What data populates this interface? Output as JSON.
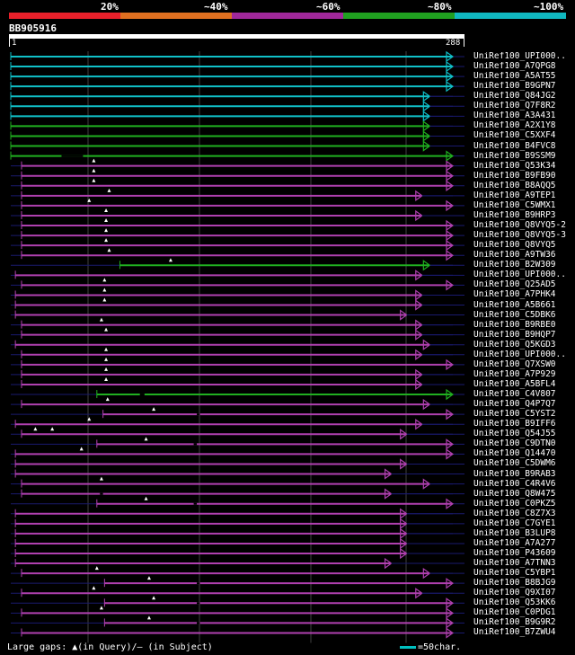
{
  "legend": {
    "segments": [
      {
        "label": "20%",
        "color": "#e8202a"
      },
      {
        "label": "~40%",
        "color": "#e07020"
      },
      {
        "label": "~60%",
        "color": "#a0289a"
      },
      {
        "label": "~80%",
        "color": "#20a020"
      },
      {
        "label": "~100%",
        "color": "#10b8c0"
      }
    ]
  },
  "query": {
    "id": "BB905916",
    "start": "1",
    "end": "288",
    "length": 288
  },
  "colors": {
    "cyan": "#10c0c8",
    "green": "#20b020",
    "magenta": "#b040b0",
    "background": "#000000",
    "dark_line": "#1a1a6e",
    "grid": "#404040"
  },
  "chart_data": {
    "type": "alignment-overview",
    "query_length": 288,
    "hits": [
      {
        "label": "UniRef100_UPI000..",
        "start": 1,
        "end": 288,
        "color": "cyan",
        "tail": 0,
        "qgaps": [],
        "sgaps": []
      },
      {
        "label": "UniRef100_A7QPG8",
        "start": 1,
        "end": 288,
        "color": "cyan",
        "tail": 0,
        "qgaps": [],
        "sgaps": []
      },
      {
        "label": "UniRef100_A5AT55",
        "start": 1,
        "end": 288,
        "color": "cyan",
        "tail": 0,
        "qgaps": [],
        "sgaps": []
      },
      {
        "label": "UniRef100_B9GPN7",
        "start": 1,
        "end": 288,
        "color": "cyan",
        "tail": 0,
        "qgaps": [],
        "sgaps": []
      },
      {
        "label": "UniRef100_Q84JG2",
        "start": 1,
        "end": 273,
        "color": "cyan",
        "tail": 15,
        "qgaps": [],
        "sgaps": []
      },
      {
        "label": "UniRef100_Q7F8R2",
        "start": 1,
        "end": 273,
        "color": "cyan",
        "tail": 15,
        "qgaps": [],
        "sgaps": []
      },
      {
        "label": "UniRef100_A3A431",
        "start": 1,
        "end": 273,
        "color": "cyan",
        "tail": 15,
        "qgaps": [],
        "sgaps": []
      },
      {
        "label": "UniRef100_A2X1Y8",
        "start": 1,
        "end": 273,
        "color": "green",
        "tail": 15,
        "qgaps": [],
        "sgaps": []
      },
      {
        "label": "UniRef100_C5XXF4",
        "start": 1,
        "end": 273,
        "color": "green",
        "tail": 15,
        "qgaps": [],
        "sgaps": []
      },
      {
        "label": "UniRef100_B4FVC8",
        "start": 1,
        "end": 273,
        "color": "green",
        "tail": 15,
        "qgaps": [],
        "sgaps": []
      },
      {
        "label": "UniRef100_B9SSM9",
        "start": 1,
        "end": 288,
        "color": "green",
        "tail": 0,
        "qgaps": [],
        "sgaps": [
          [
            34,
            48
          ]
        ]
      },
      {
        "label": "UniRef100_Q53K34",
        "start": 8,
        "end": 288,
        "color": "magenta",
        "tail": 0,
        "qgaps": [
          55
        ],
        "sgaps": []
      },
      {
        "label": "UniRef100_B9FB90",
        "start": 8,
        "end": 288,
        "color": "magenta",
        "tail": 0,
        "qgaps": [
          55
        ],
        "sgaps": []
      },
      {
        "label": "UniRef100_B8AQQ5",
        "start": 8,
        "end": 288,
        "color": "magenta",
        "tail": 0,
        "qgaps": [
          55
        ],
        "sgaps": []
      },
      {
        "label": "UniRef100_A9TEP1",
        "start": 8,
        "end": 268,
        "color": "magenta",
        "tail": 20,
        "qgaps": [
          65
        ],
        "sgaps": []
      },
      {
        "label": "UniRef100_C5WMX1",
        "start": 8,
        "end": 288,
        "color": "magenta",
        "tail": 0,
        "qgaps": [
          52
        ],
        "sgaps": []
      },
      {
        "label": "UniRef100_B9HRP3",
        "start": 8,
        "end": 268,
        "color": "magenta",
        "tail": 20,
        "qgaps": [
          63
        ],
        "sgaps": []
      },
      {
        "label": "UniRef100_Q8VYQ5-2",
        "start": 8,
        "end": 288,
        "color": "magenta",
        "tail": 0,
        "qgaps": [
          63
        ],
        "sgaps": []
      },
      {
        "label": "UniRef100_Q8VYQ5-3",
        "start": 8,
        "end": 288,
        "color": "magenta",
        "tail": 0,
        "qgaps": [
          63
        ],
        "sgaps": []
      },
      {
        "label": "UniRef100_Q8VYQ5",
        "start": 8,
        "end": 288,
        "color": "magenta",
        "tail": 0,
        "qgaps": [
          63
        ],
        "sgaps": []
      },
      {
        "label": "UniRef100_A9TW36",
        "start": 8,
        "end": 288,
        "color": "magenta",
        "tail": 0,
        "qgaps": [
          65
        ],
        "sgaps": []
      },
      {
        "label": "UniRef100_B2W309",
        "start": 72,
        "end": 273,
        "color": "green",
        "tail": 15,
        "qgaps": [
          105
        ],
        "sgaps": []
      },
      {
        "label": "UniRef100_UPI000..",
        "start": 4,
        "end": 268,
        "color": "magenta",
        "tail": 20,
        "qgaps": [],
        "sgaps": []
      },
      {
        "label": "UniRef100_Q25AD5",
        "start": 8,
        "end": 288,
        "color": "magenta",
        "tail": 0,
        "qgaps": [
          62
        ],
        "sgaps": []
      },
      {
        "label": "UniRef100_A7PHK4",
        "start": 4,
        "end": 268,
        "color": "magenta",
        "tail": 20,
        "qgaps": [
          62
        ],
        "sgaps": []
      },
      {
        "label": "UniRef100_A5B661",
        "start": 4,
        "end": 268,
        "color": "magenta",
        "tail": 20,
        "qgaps": [
          62
        ],
        "sgaps": []
      },
      {
        "label": "UniRef100_C5DBK6",
        "start": 4,
        "end": 258,
        "color": "magenta",
        "tail": 30,
        "qgaps": [],
        "sgaps": []
      },
      {
        "label": "UniRef100_B9RBE0",
        "start": 8,
        "end": 268,
        "color": "magenta",
        "tail": 20,
        "qgaps": [
          60
        ],
        "sgaps": []
      },
      {
        "label": "UniRef100_B9HQP7",
        "start": 8,
        "end": 268,
        "color": "magenta",
        "tail": 20,
        "qgaps": [
          63
        ],
        "sgaps": []
      },
      {
        "label": "UniRef100_Q5KGD3",
        "start": 4,
        "end": 273,
        "color": "magenta",
        "tail": 15,
        "qgaps": [],
        "sgaps": []
      },
      {
        "label": "UniRef100_UPI000..",
        "start": 8,
        "end": 268,
        "color": "magenta",
        "tail": 20,
        "qgaps": [
          63
        ],
        "sgaps": []
      },
      {
        "label": "UniRef100_Q7XSW0",
        "start": 8,
        "end": 288,
        "color": "magenta",
        "tail": 0,
        "qgaps": [
          63
        ],
        "sgaps": []
      },
      {
        "label": "UniRef100_A7P929",
        "start": 8,
        "end": 268,
        "color": "magenta",
        "tail": 20,
        "qgaps": [
          63
        ],
        "sgaps": []
      },
      {
        "label": "UniRef100_A5BFL4",
        "start": 8,
        "end": 268,
        "color": "magenta",
        "tail": 20,
        "qgaps": [
          63
        ],
        "sgaps": []
      },
      {
        "label": "UniRef100_C4V807",
        "start": 57,
        "end": 288,
        "color": "green",
        "tail": 0,
        "qgaps": [],
        "sgaps": [
          [
            85,
            88
          ]
        ]
      },
      {
        "label": "UniRef100_Q4P7Q7",
        "start": 8,
        "end": 273,
        "color": "magenta",
        "tail": 15,
        "qgaps": [
          64
        ],
        "sgaps": []
      },
      {
        "label": "UniRef100_C5YST2",
        "start": 61,
        "end": 288,
        "color": "magenta",
        "tail": 0,
        "qgaps": [
          94
        ],
        "sgaps": [
          [
            122,
            124
          ]
        ]
      },
      {
        "label": "UniRef100_B9IFF6",
        "start": 4,
        "end": 268,
        "color": "magenta",
        "tail": 20,
        "qgaps": [
          52
        ],
        "sgaps": []
      },
      {
        "label": "UniRef100_Q54J55",
        "start": 8,
        "end": 258,
        "color": "magenta",
        "tail": 30,
        "qgaps": [
          17,
          28
        ],
        "sgaps": []
      },
      {
        "label": "UniRef100_C9DTN0",
        "start": 57,
        "end": 288,
        "color": "magenta",
        "tail": 0,
        "qgaps": [
          89
        ],
        "sgaps": [
          [
            120,
            122
          ]
        ]
      },
      {
        "label": "UniRef100_Q14470",
        "start": 4,
        "end": 288,
        "color": "magenta",
        "tail": 0,
        "qgaps": [
          47
        ],
        "sgaps": []
      },
      {
        "label": "UniRef100_C5DWM6",
        "start": 4,
        "end": 258,
        "color": "magenta",
        "tail": 30,
        "qgaps": [],
        "sgaps": []
      },
      {
        "label": "UniRef100_B9RAB3",
        "start": 4,
        "end": 248,
        "color": "magenta",
        "tail": 40,
        "qgaps": [],
        "sgaps": []
      },
      {
        "label": "UniRef100_C4R4V6",
        "start": 8,
        "end": 273,
        "color": "magenta",
        "tail": 15,
        "qgaps": [
          60
        ],
        "sgaps": []
      },
      {
        "label": "UniRef100_Q8W475",
        "start": 8,
        "end": 248,
        "color": "magenta",
        "tail": 40,
        "qgaps": [],
        "sgaps": [
          [
            59,
            61
          ]
        ]
      },
      {
        "label": "UniRef100_C0PKZ5",
        "start": 57,
        "end": 288,
        "color": "magenta",
        "tail": 0,
        "qgaps": [
          89
        ],
        "sgaps": [
          [
            120,
            122
          ]
        ]
      },
      {
        "label": "UniRef100_C8Z7X3",
        "start": 4,
        "end": 258,
        "color": "magenta",
        "tail": 30,
        "qgaps": [],
        "sgaps": []
      },
      {
        "label": "UniRef100_C7GYE1",
        "start": 4,
        "end": 258,
        "color": "magenta",
        "tail": 30,
        "qgaps": [],
        "sgaps": []
      },
      {
        "label": "UniRef100_B3LUP8",
        "start": 4,
        "end": 258,
        "color": "magenta",
        "tail": 30,
        "qgaps": [],
        "sgaps": []
      },
      {
        "label": "UniRef100_A7A277",
        "start": 4,
        "end": 258,
        "color": "magenta",
        "tail": 30,
        "qgaps": [],
        "sgaps": []
      },
      {
        "label": "UniRef100_P43609",
        "start": 4,
        "end": 258,
        "color": "magenta",
        "tail": 30,
        "qgaps": [],
        "sgaps": []
      },
      {
        "label": "UniRef100_A7TNN3",
        "start": 4,
        "end": 248,
        "color": "magenta",
        "tail": 40,
        "qgaps": [],
        "sgaps": []
      },
      {
        "label": "UniRef100_C5YBP1",
        "start": 8,
        "end": 273,
        "color": "magenta",
        "tail": 15,
        "qgaps": [
          57
        ],
        "sgaps": []
      },
      {
        "label": "UniRef100_B8BJG9",
        "start": 62,
        "end": 288,
        "color": "magenta",
        "tail": 0,
        "qgaps": [
          91
        ],
        "sgaps": [
          [
            122,
            124
          ]
        ]
      },
      {
        "label": "UniRef100_Q9XI07",
        "start": 8,
        "end": 268,
        "color": "magenta",
        "tail": 20,
        "qgaps": [
          55
        ],
        "sgaps": []
      },
      {
        "label": "UniRef100_Q53KK6",
        "start": 62,
        "end": 288,
        "color": "magenta",
        "tail": 0,
        "qgaps": [
          94
        ],
        "sgaps": [
          [
            122,
            124
          ]
        ]
      },
      {
        "label": "UniRef100_C0PDG1",
        "start": 8,
        "end": 288,
        "color": "magenta",
        "tail": 0,
        "qgaps": [
          60
        ],
        "sgaps": []
      },
      {
        "label": "UniRef100_B9G9R2",
        "start": 62,
        "end": 288,
        "color": "magenta",
        "tail": 0,
        "qgaps": [
          91
        ],
        "sgaps": [
          [
            122,
            124
          ]
        ]
      },
      {
        "label": "UniRef100_B7ZWU4",
        "start": 8,
        "end": 288,
        "color": "magenta",
        "tail": 0,
        "qgaps": [],
        "sgaps": []
      }
    ]
  },
  "footer": {
    "gaps_text": "Large gaps: ▲(in Query)/— (in Subject)",
    "scale_text": "=50char."
  }
}
